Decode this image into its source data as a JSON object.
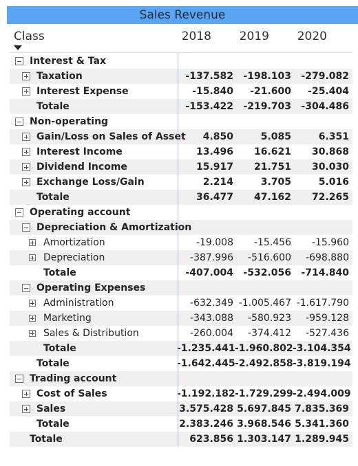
{
  "title": "Sales Revenue",
  "header": {
    "class": "Class",
    "years": [
      "2018",
      "2019",
      "2020"
    ]
  },
  "rows": [
    {
      "label": "Interest & Tax",
      "level": 0,
      "icon": "minus",
      "bold": true,
      "values": [
        "",
        "",
        ""
      ]
    },
    {
      "label": "Taxation",
      "level": 1,
      "icon": "plus",
      "bold": true,
      "values": [
        "-137.582",
        "-198.103",
        "-279.082"
      ]
    },
    {
      "label": "Interest Expense",
      "level": 1,
      "icon": "plus",
      "bold": true,
      "values": [
        "-15.840",
        "-21.600",
        "-25.404"
      ]
    },
    {
      "label": "Totale",
      "level": 1,
      "icon": "none",
      "bold": true,
      "values": [
        "-153.422",
        "-219.703",
        "-304.486"
      ]
    },
    {
      "label": "Non-operating",
      "level": 0,
      "icon": "minus",
      "bold": true,
      "values": [
        "",
        "",
        ""
      ]
    },
    {
      "label": "Gain/Loss on Sales of Asset",
      "level": 1,
      "icon": "plus",
      "bold": true,
      "values": [
        "4.850",
        "5.085",
        "6.351"
      ]
    },
    {
      "label": "Interest Income",
      "level": 1,
      "icon": "plus",
      "bold": true,
      "values": [
        "13.496",
        "16.621",
        "30.868"
      ]
    },
    {
      "label": "Dividend Income",
      "level": 1,
      "icon": "plus",
      "bold": true,
      "values": [
        "15.917",
        "21.751",
        "30.030"
      ]
    },
    {
      "label": "Exchange Loss/Gain",
      "level": 1,
      "icon": "plus",
      "bold": true,
      "values": [
        "2.214",
        "3.705",
        "5.016"
      ]
    },
    {
      "label": "Totale",
      "level": 1,
      "icon": "none",
      "bold": true,
      "values": [
        "36.477",
        "47.162",
        "72.265"
      ]
    },
    {
      "label": "Operating account",
      "level": 0,
      "icon": "minus",
      "bold": true,
      "values": [
        "",
        "",
        ""
      ]
    },
    {
      "label": "Depreciation & Amortization",
      "level": 1,
      "icon": "minus",
      "bold": true,
      "values": [
        "",
        "",
        ""
      ]
    },
    {
      "label": "Amortization",
      "level": 2,
      "icon": "plus",
      "bold": false,
      "values": [
        "-19.008",
        "-15.456",
        "-15.960"
      ]
    },
    {
      "label": "Depreciation",
      "level": 2,
      "icon": "plus",
      "bold": false,
      "values": [
        "-387.996",
        "-516.600",
        "-698.880"
      ]
    },
    {
      "label": "Totale",
      "level": 2,
      "icon": "none",
      "bold": true,
      "values": [
        "-407.004",
        "-532.056",
        "-714.840"
      ]
    },
    {
      "label": "Operating Expenses",
      "level": 1,
      "icon": "minus",
      "bold": true,
      "values": [
        "",
        "",
        ""
      ]
    },
    {
      "label": "Administration",
      "level": 2,
      "icon": "plus",
      "bold": false,
      "values": [
        "-632.349",
        "-1.005.467",
        "-1.617.790"
      ]
    },
    {
      "label": "Marketing",
      "level": 2,
      "icon": "plus",
      "bold": false,
      "values": [
        "-343.088",
        "-580.923",
        "-959.128"
      ]
    },
    {
      "label": "Sales & Distribution",
      "level": 2,
      "icon": "plus",
      "bold": false,
      "values": [
        "-260.004",
        "-374.412",
        "-527.436"
      ]
    },
    {
      "label": "Totale",
      "level": 2,
      "icon": "none",
      "bold": true,
      "values": [
        "-1.235.441",
        "-1.960.802",
        "-3.104.354"
      ]
    },
    {
      "label": "Totale",
      "level": 1,
      "icon": "none",
      "bold": true,
      "values": [
        "-1.642.445",
        "-2.492.858",
        "-3.819.194"
      ]
    },
    {
      "label": "Trading account",
      "level": 0,
      "icon": "minus",
      "bold": true,
      "values": [
        "",
        "",
        ""
      ]
    },
    {
      "label": "Cost of Sales",
      "level": 1,
      "icon": "plus",
      "bold": true,
      "values": [
        "-1.192.182",
        "-1.729.299",
        "-2.494.009"
      ]
    },
    {
      "label": "Sales",
      "level": 1,
      "icon": "plus",
      "bold": true,
      "values": [
        "3.575.428",
        "5.697.845",
        "7.835.369"
      ]
    },
    {
      "label": "Totale",
      "level": 1,
      "icon": "none",
      "bold": true,
      "values": [
        "2.383.246",
        "3.968.546",
        "5.341.360"
      ]
    },
    {
      "label": "Totale",
      "level": 0,
      "icon": "none",
      "bold": true,
      "values": [
        "623.856",
        "1.303.147",
        "1.289.945"
      ]
    }
  ]
}
